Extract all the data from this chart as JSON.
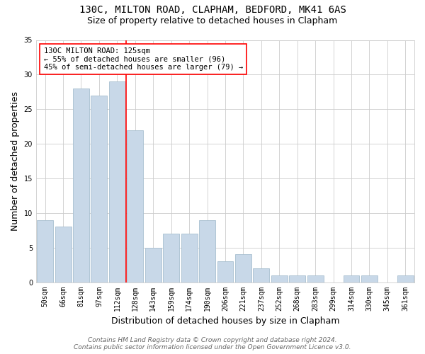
{
  "title_line1": "130C, MILTON ROAD, CLAPHAM, BEDFORD, MK41 6AS",
  "title_line2": "Size of property relative to detached houses in Clapham",
  "xlabel": "Distribution of detached houses by size in Clapham",
  "ylabel": "Number of detached properties",
  "categories": [
    "50sqm",
    "66sqm",
    "81sqm",
    "97sqm",
    "112sqm",
    "128sqm",
    "143sqm",
    "159sqm",
    "174sqm",
    "190sqm",
    "206sqm",
    "221sqm",
    "237sqm",
    "252sqm",
    "268sqm",
    "283sqm",
    "299sqm",
    "314sqm",
    "330sqm",
    "345sqm",
    "361sqm"
  ],
  "values": [
    9,
    8,
    28,
    27,
    29,
    22,
    5,
    7,
    7,
    9,
    3,
    4,
    2,
    1,
    1,
    1,
    0,
    1,
    1,
    0,
    1
  ],
  "bar_color": "#c8d8e8",
  "bar_edge_color": "#a8bfd0",
  "red_line_x": 5,
  "annotation_text": "130C MILTON ROAD: 125sqm\n← 55% of detached houses are smaller (96)\n45% of semi-detached houses are larger (79) →",
  "annotation_box_color": "white",
  "annotation_box_edge_color": "red",
  "ylim": [
    0,
    35
  ],
  "yticks": [
    0,
    5,
    10,
    15,
    20,
    25,
    30,
    35
  ],
  "footer_line1": "Contains HM Land Registry data © Crown copyright and database right 2024.",
  "footer_line2": "Contains public sector information licensed under the Open Government Licence v3.0.",
  "bg_color": "white",
  "grid_color": "#cccccc",
  "title_fontsize": 10,
  "subtitle_fontsize": 9,
  "axis_label_fontsize": 9,
  "tick_fontsize": 7,
  "footer_fontsize": 6.5
}
